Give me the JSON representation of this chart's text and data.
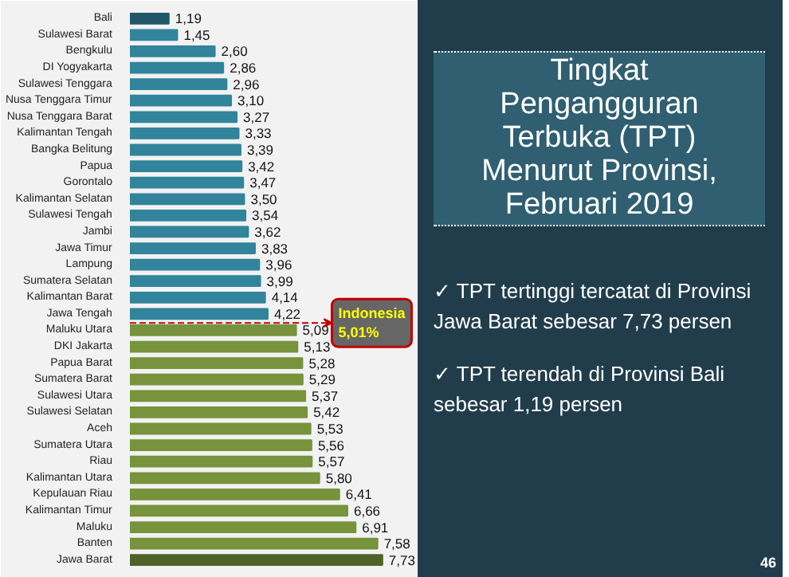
{
  "chart_data": {
    "type": "bar",
    "orientation": "horizontal",
    "title": "Tingkat\nPengangguran\nTerbuka (TPT)\nMenurut Provinsi,\nFebruari 2019",
    "categories": [
      "Bali",
      "Sulawesi Barat",
      "Bengkulu",
      "DI Yogyakarta",
      "Sulawesi Tenggara",
      "Nusa Tenggara Timur",
      "Nusa Tenggara Barat",
      "Kalimantan Tengah",
      "Bangka Belitung",
      "Papua",
      "Gorontalo",
      "Kalimantan Selatan",
      "Sulawesi Tengah",
      "Jambi",
      "Jawa Timur",
      "Lampung",
      "Sumatera Selatan",
      "Kalimantan Barat",
      "Jawa Tengah",
      "Maluku Utara",
      "DKI Jakarta",
      "Papua Barat",
      "Sumatera Barat",
      "Sulawesi Utara",
      "Sulawesi Selatan",
      "Aceh",
      "Sumatera Utara",
      "Riau",
      "Kalimantan Utara",
      "Kepulauan Riau",
      "Kalimantan Timur",
      "Maluku",
      "Banten",
      "Jawa Barat"
    ],
    "values": [
      1.19,
      1.45,
      2.6,
      2.86,
      2.96,
      3.1,
      3.27,
      3.33,
      3.39,
      3.42,
      3.47,
      3.5,
      3.54,
      3.62,
      3.83,
      3.96,
      3.99,
      4.14,
      4.22,
      5.09,
      5.13,
      5.28,
      5.29,
      5.37,
      5.42,
      5.53,
      5.56,
      5.57,
      5.8,
      6.41,
      6.66,
      6.91,
      7.58,
      7.73
    ],
    "value_labels": [
      "1,19",
      "1,45",
      "2,60",
      "2,86",
      "2,96",
      "3,10",
      "3,27",
      "3,33",
      "3,39",
      "3,42",
      "3,47",
      "3,50",
      "3,54",
      "3,62",
      "3,83",
      "3,96",
      "3,99",
      "4,14",
      "4,22",
      "5,09",
      "5,13",
      "5,28",
      "5,29",
      "5,37",
      "5,42",
      "5,53",
      "5,56",
      "5,57",
      "5,80",
      "6,41",
      "6,66",
      "6,91",
      "7,58",
      "7,73"
    ],
    "colors": [
      "#215868",
      "#31849b",
      "#31849b",
      "#31849b",
      "#31849b",
      "#31849b",
      "#31849b",
      "#31849b",
      "#31849b",
      "#31849b",
      "#31849b",
      "#31849b",
      "#31849b",
      "#31849b",
      "#31849b",
      "#31849b",
      "#31849b",
      "#31849b",
      "#31849b",
      "#77933c",
      "#77933c",
      "#77933c",
      "#77933c",
      "#77933c",
      "#77933c",
      "#77933c",
      "#77933c",
      "#77933c",
      "#77933c",
      "#77933c",
      "#77933c",
      "#77933c",
      "#77933c",
      "#4f6228"
    ],
    "annotations": [
      "Indonesia\n5,01%",
      "✓ TPT tertinggi tercatat di Provinsi Jawa Barat sebesar 7,73 persen",
      "✓ TPT terendah di Provinsi Bali sebesar 1,19 persen",
      "46"
    ],
    "tick_labels": "y",
    "grid": false
  }
}
